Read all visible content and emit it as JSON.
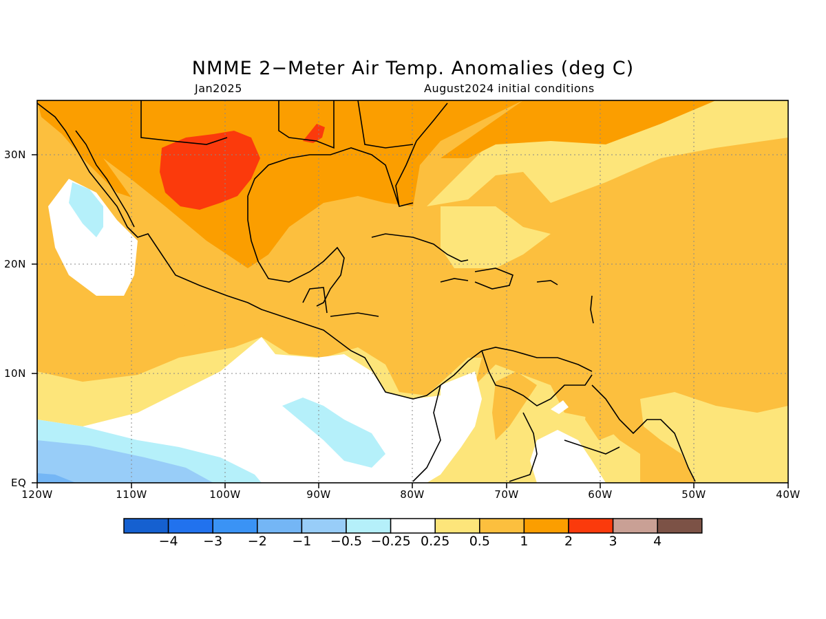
{
  "title": "NMME 2−Meter Air Temp. Anomalies (deg C)",
  "subtitle_left": "Jan2025",
  "subtitle_right": "August2024 initial conditions",
  "map": {
    "projection": "lat-lon",
    "region": "Gulf of Mexico, Caribbean, Central America, northern South America",
    "lon_range": [
      -120,
      -40
    ],
    "lat_range": [
      0,
      35
    ],
    "gridlines": "dotted",
    "y_ticks": [
      "30N",
      "20N",
      "10N",
      "EQ"
    ],
    "x_ticks": [
      "120W",
      "110W",
      "100W",
      "90W",
      "80W",
      "70W",
      "60W",
      "50W",
      "40W"
    ],
    "land_outline_color": "#000000"
  },
  "colorbar": {
    "colors": [
      "#1560d0",
      "#2172ee",
      "#3a93f5",
      "#74b6f5",
      "#98cdf8",
      "#b5f0fa",
      "#ffffff",
      "#fde57a",
      "#fcbf3e",
      "#fb9e00",
      "#fb3a0c",
      "#c9a095",
      "#7c5246"
    ],
    "labels": [
      "−4",
      "−3",
      "−2",
      "−1",
      "−0.5",
      "−0.25",
      "0.25",
      "0.5",
      "1",
      "2",
      "3",
      "4"
    ]
  }
}
